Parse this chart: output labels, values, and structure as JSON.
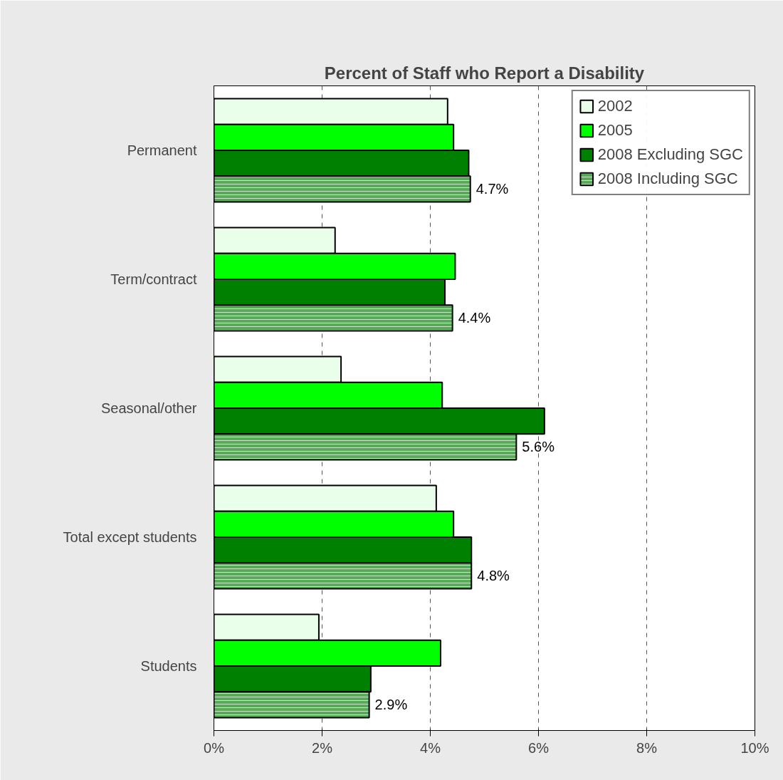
{
  "chart_data": {
    "type": "bar",
    "orientation": "horizontal",
    "title": "Percent of Staff who Report a Disability",
    "categories": [
      "Permanent",
      "Term/contract",
      "Seasonal/other",
      "Total except students",
      "Students"
    ],
    "series": [
      {
        "name": "2002",
        "color": "#eaffea",
        "values": [
          4.32,
          2.24,
          2.35,
          4.11,
          1.94
        ]
      },
      {
        "name": "2005",
        "color": "#00ff00",
        "values": [
          4.43,
          4.46,
          4.22,
          4.43,
          4.19
        ]
      },
      {
        "name": "2008 Excluding SGC",
        "color": "#008000",
        "values": [
          4.71,
          4.27,
          6.11,
          4.76,
          2.9
        ]
      },
      {
        "name": "2008 Including SGC",
        "color": "#5aa85a",
        "values": [
          4.74,
          4.41,
          5.59,
          4.76,
          2.87
        ],
        "value_labels": [
          "4.7%",
          "4.4%",
          "5.6%",
          "4.8%",
          "2.9%"
        ]
      }
    ],
    "xlim": [
      0,
      10
    ],
    "xticks": [
      {
        "value": 0,
        "label": "0%"
      },
      {
        "value": 2,
        "label": "2%"
      },
      {
        "value": 4,
        "label": "4%"
      },
      {
        "value": 6,
        "label": "6%"
      },
      {
        "value": 8,
        "label": "8%"
      },
      {
        "value": 10,
        "label": "10%"
      }
    ],
    "grid": "x",
    "legend": "top right"
  }
}
